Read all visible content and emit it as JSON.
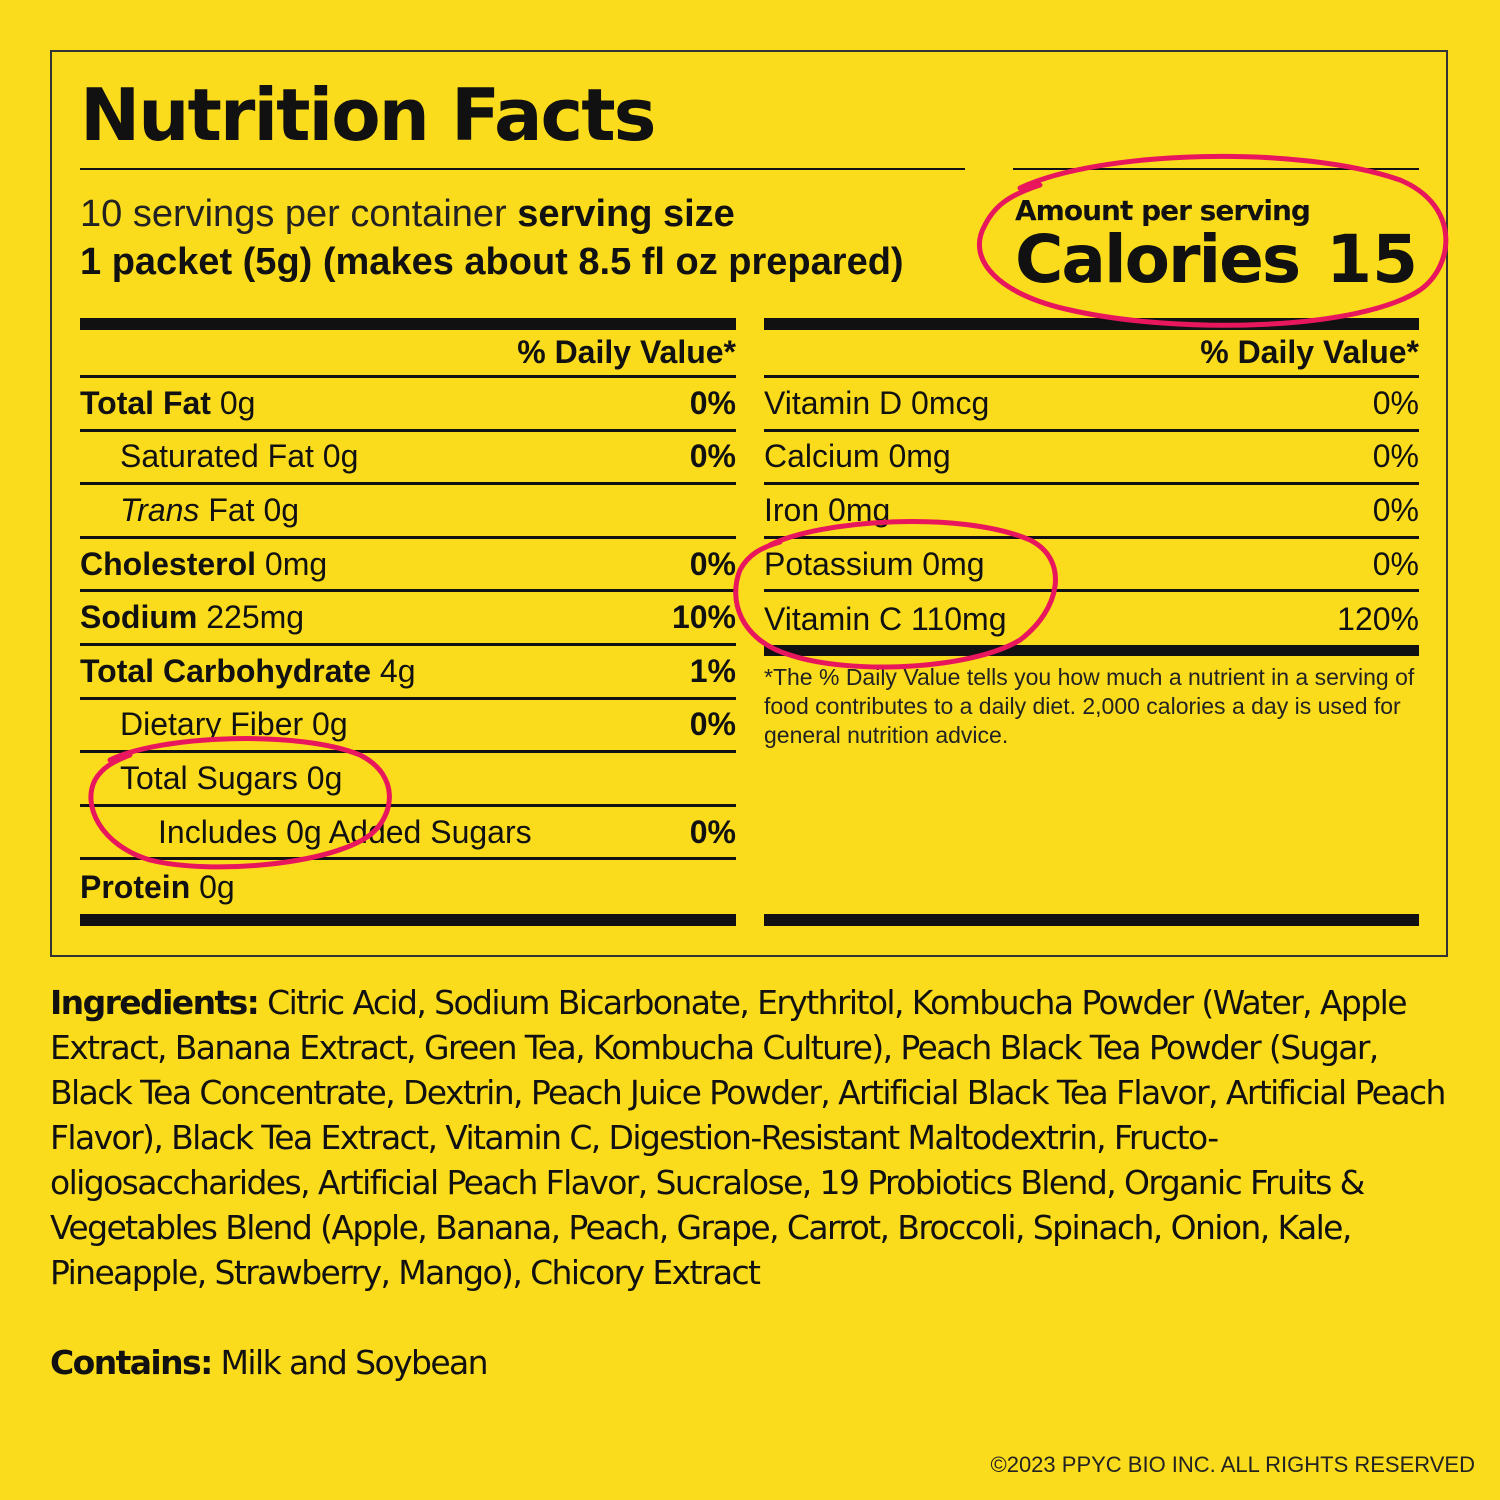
{
  "title": "Nutrition Facts",
  "serving": {
    "servings_per_container": "10 servings per container",
    "serving_size_label": "serving size",
    "serving_size_value": "1 packet (5g) (makes about 8.5 fl oz prepared)"
  },
  "calories": {
    "amount_label": "Amount per serving",
    "label": "Calories",
    "value": "15"
  },
  "left_panel": {
    "dv_header": "% Daily Value*",
    "rows": [
      {
        "name": "Total Fat",
        "amount": "0g",
        "pct": "0%"
      },
      {
        "name": "Saturated Fat",
        "amount": "0g",
        "pct": "0%"
      },
      {
        "name": "Trans",
        "name_rest": " Fat 0g",
        "pct": ""
      },
      {
        "name": "Cholesterol",
        "amount": "0mg",
        "pct": "0%"
      },
      {
        "name": "Sodium",
        "amount": "225mg",
        "pct": "10%"
      },
      {
        "name": "Total Carbohydrate",
        "amount": "4g",
        "pct": "1%"
      },
      {
        "name": "Dietary Fiber",
        "amount": "0g",
        "pct": "0%"
      },
      {
        "name": "Total Sugars",
        "amount": "0g",
        "pct": ""
      },
      {
        "name": "Includes 0g Added Sugars",
        "pct": "0%"
      },
      {
        "name": "Protein",
        "amount": "0g",
        "pct": ""
      }
    ]
  },
  "right_panel": {
    "dv_header": "% Daily Value*",
    "rows": [
      {
        "name": "Vitamin D 0mcg",
        "pct": "0%"
      },
      {
        "name": "Calcium 0mg",
        "pct": "0%"
      },
      {
        "name": "Iron 0mg",
        "pct": "0%"
      },
      {
        "name": "Potassium 0mg",
        "pct": "0%"
      },
      {
        "name": "Vitamin C 110mg",
        "pct": "120%"
      }
    ],
    "footnote": "*The % Daily Value tells you how much a nutrient in a serving of food contributes to a daily diet. 2,000 calories a day is used for general nutrition advice."
  },
  "ingredients": {
    "label": "Ingredients:",
    "text": " Citric Acid, Sodium Bicarbonate, Erythritol, Kombucha Powder (Water, Apple Extract, Banana Extract, Green Tea, Kombucha Culture), Peach Black Tea Powder (Sugar, Black Tea Concentrate, Dextrin, Peach Juice Powder, Artificial Black Tea Flavor, Artificial Peach Flavor), Black Tea Extract, Vitamin C, Digestion-Resistant Maltodextrin, Fructo-oligosaccharides, Artificial Peach Flavor, Sucralose, 19 Probiotics Blend, Organic Fruits & Vegetables Blend (Apple, Banana, Peach, Grape, Carrot, Broccoli, Spinach, Onion, Kale, Pineapple, Strawberry, Mango), Chicory Extract"
  },
  "contains": {
    "label": "Contains:",
    "text": " Milk and Soybean"
  },
  "copyright": "©2023 PPYC BIO INC. ALL RIGHTS RESERVED",
  "colors": {
    "background": "#FBDC1C",
    "ink": "#111111",
    "highlight_circle": "#E8175D"
  }
}
